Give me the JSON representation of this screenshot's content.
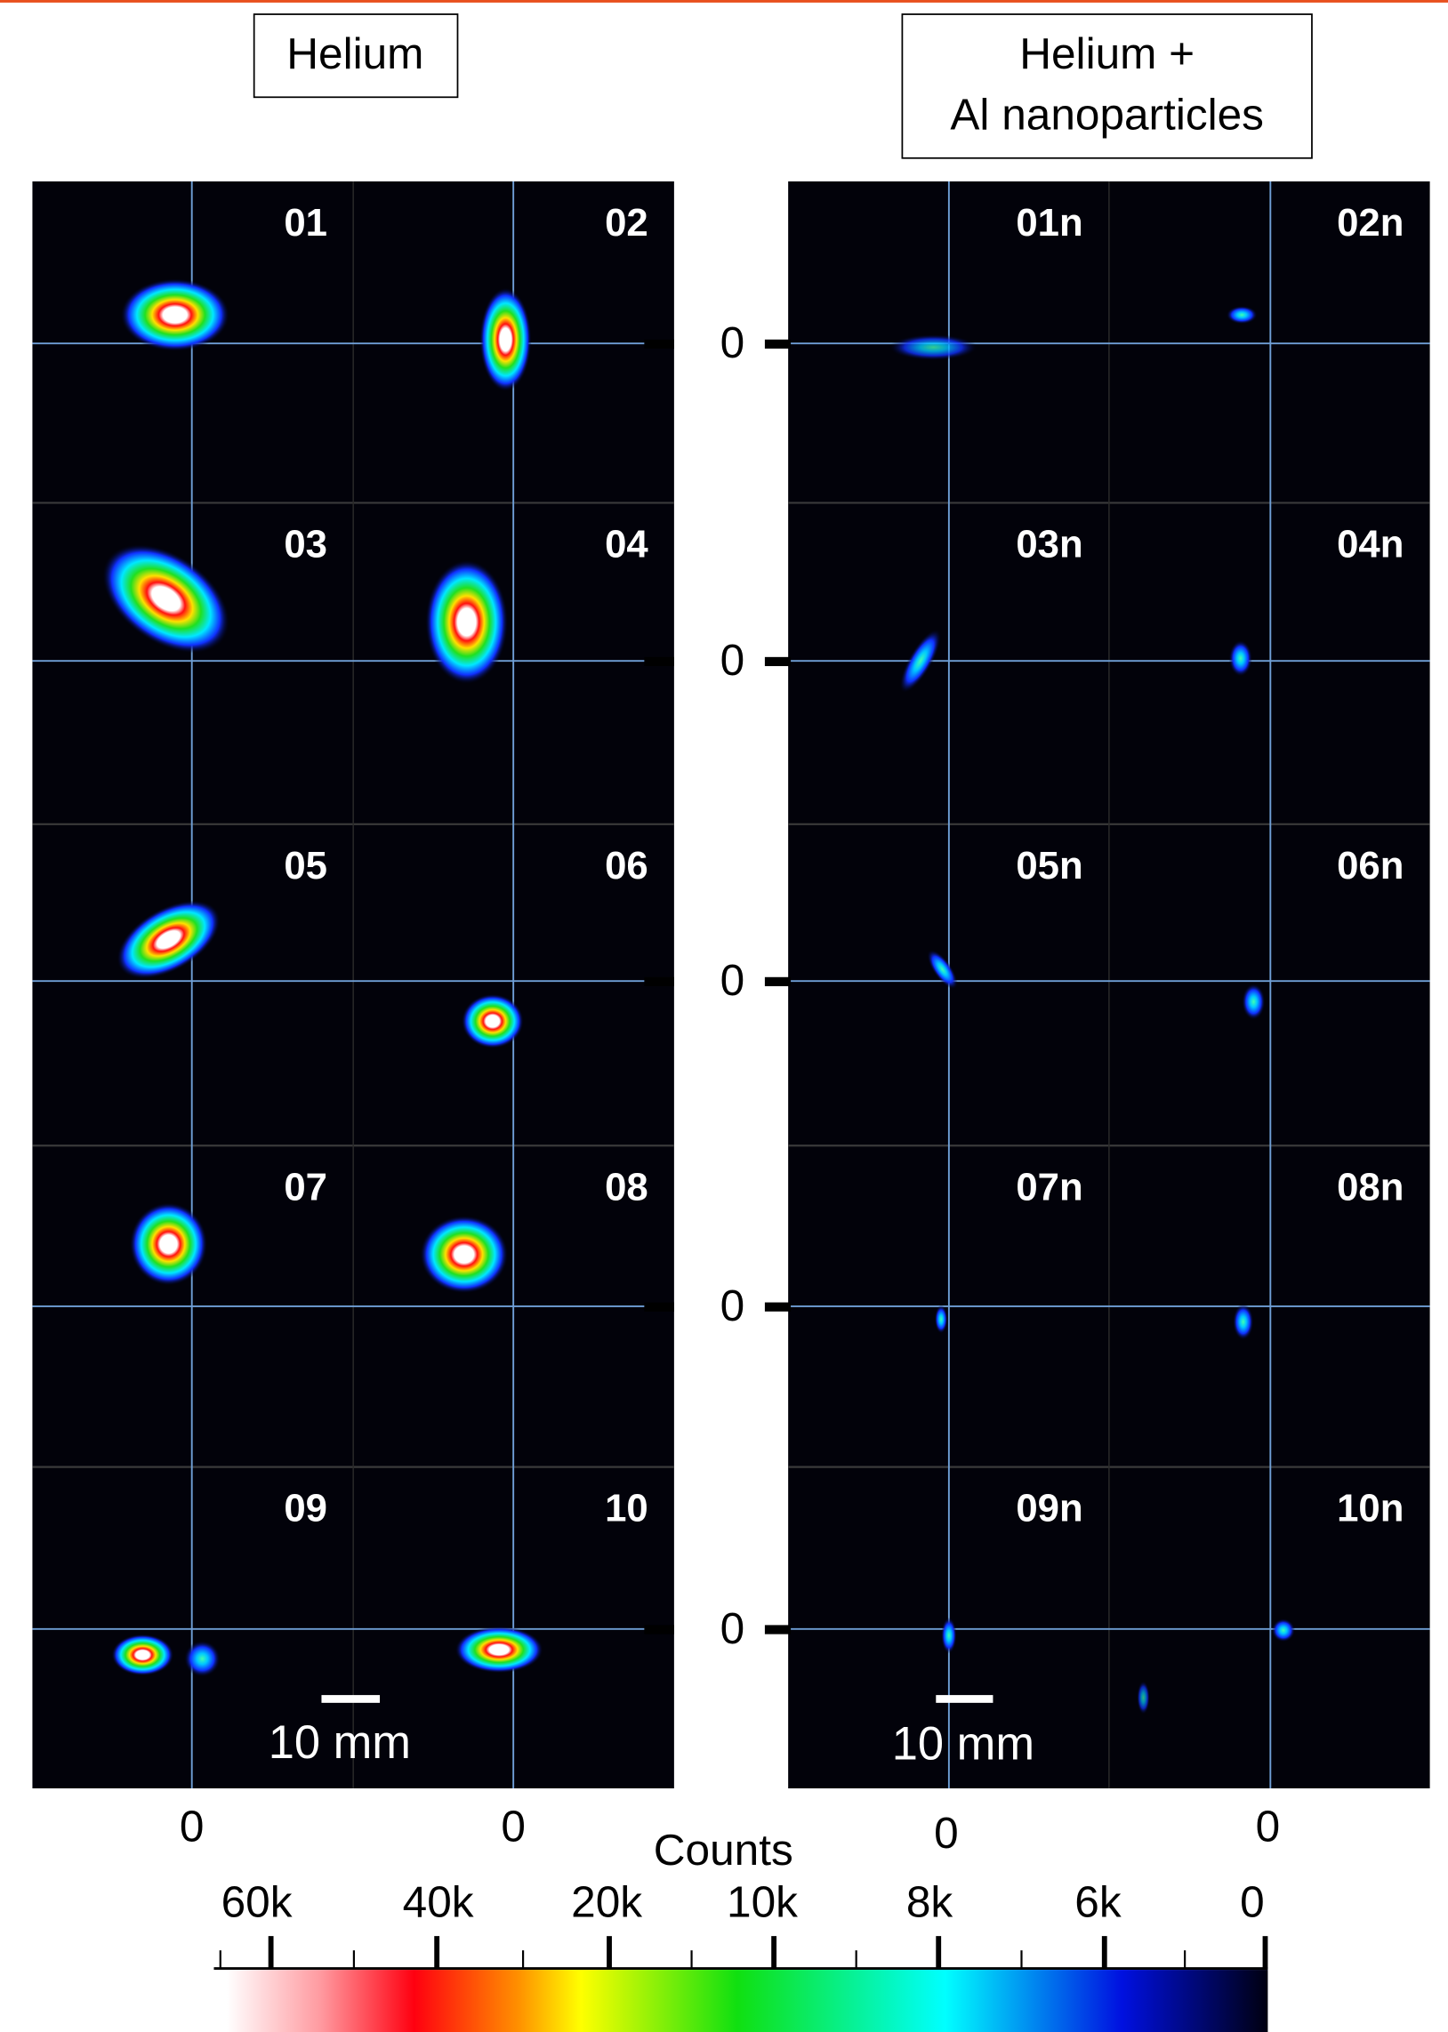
{
  "headers": {
    "left": "Helium",
    "right": [
      "Helium +",
      "Al nanoparticles"
    ]
  },
  "panels": {
    "left": [
      "01",
      "02",
      "03",
      "04",
      "05",
      "06",
      "07",
      "08",
      "09",
      "10"
    ],
    "right": [
      "01n",
      "02n",
      "03n",
      "04n",
      "05n",
      "06n",
      "07n",
      "08n",
      "09n",
      "10n"
    ]
  },
  "row_zero_labels": [
    "0",
    "0",
    "0",
    "0",
    "0"
  ],
  "column_zero_labels": [
    "0",
    "0",
    "0",
    "0"
  ],
  "scale_bars": [
    "10 mm",
    "10 mm"
  ],
  "colorbar": {
    "title": "Counts",
    "ticks": [
      "60k",
      "40k",
      "20k",
      "10k",
      "8k",
      "6k",
      "0"
    ]
  }
}
